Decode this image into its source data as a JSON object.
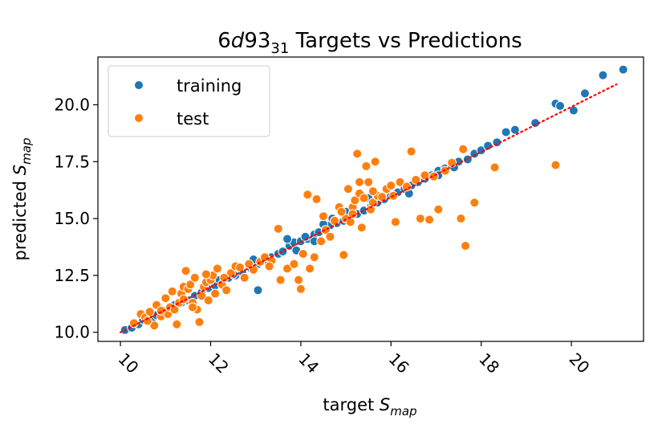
{
  "chart_data": {
    "type": "scatter",
    "title": {
      "prefix": "6",
      "italic": "d",
      "mid": "93",
      "sub": "31",
      "suffix": " Targets vs Predictions"
    },
    "xlabel": {
      "text": "target ",
      "italic": "S",
      "sub": "map"
    },
    "ylabel": {
      "text": "predicted ",
      "italic": "S",
      "sub": "map"
    },
    "xlim": [
      9.5,
      21.6
    ],
    "ylim": [
      9.6,
      22.1
    ],
    "xticks": [
      10,
      12,
      14,
      16,
      18,
      20
    ],
    "yticks": [
      10.0,
      12.5,
      15.0,
      17.5,
      20.0
    ],
    "xtick_labels": [
      "10",
      "12",
      "14",
      "16",
      "18",
      "20"
    ],
    "ytick_labels": [
      "10.0",
      "12.5",
      "15.0",
      "17.5",
      "20.0"
    ],
    "legend": {
      "position": "upper-left",
      "entries": [
        "training",
        "test"
      ]
    },
    "series": [
      {
        "name": "training",
        "color": "#1f77b4",
        "points": [
          [
            10.1,
            10.1
          ],
          [
            10.25,
            10.2
          ],
          [
            10.4,
            10.35
          ],
          [
            10.5,
            10.55
          ],
          [
            10.7,
            10.6
          ],
          [
            10.8,
            10.75
          ],
          [
            10.95,
            10.9
          ],
          [
            11.05,
            11.0
          ],
          [
            11.2,
            11.2
          ],
          [
            11.35,
            11.3
          ],
          [
            11.5,
            11.4
          ],
          [
            11.65,
            11.6
          ],
          [
            11.8,
            11.75
          ],
          [
            11.95,
            11.95
          ],
          [
            12.1,
            12.05
          ],
          [
            12.25,
            12.2
          ],
          [
            12.4,
            12.4
          ],
          [
            12.55,
            12.5
          ],
          [
            12.7,
            12.65
          ],
          [
            12.9,
            12.8
          ],
          [
            13.05,
            13.0
          ],
          [
            13.2,
            13.2
          ],
          [
            13.35,
            13.3
          ],
          [
            13.5,
            13.45
          ],
          [
            13.6,
            13.55
          ],
          [
            13.75,
            13.8
          ],
          [
            13.85,
            13.95
          ],
          [
            14.0,
            14.0
          ],
          [
            14.15,
            14.1
          ],
          [
            14.3,
            14.3
          ],
          [
            14.4,
            14.4
          ],
          [
            14.55,
            14.6
          ],
          [
            14.65,
            14.7
          ],
          [
            14.8,
            14.8
          ],
          [
            14.95,
            14.9
          ],
          [
            15.1,
            15.1
          ],
          [
            15.25,
            15.2
          ],
          [
            15.4,
            15.35
          ],
          [
            15.55,
            15.5
          ],
          [
            15.7,
            15.7
          ],
          [
            15.85,
            15.85
          ],
          [
            16.0,
            16.0
          ],
          [
            16.15,
            16.15
          ],
          [
            16.3,
            16.3
          ],
          [
            16.45,
            16.45
          ],
          [
            16.6,
            16.6
          ],
          [
            16.75,
            16.75
          ],
          [
            16.9,
            16.9
          ],
          [
            17.05,
            17.1
          ],
          [
            17.2,
            17.2
          ],
          [
            17.35,
            17.35
          ],
          [
            17.5,
            17.5
          ],
          [
            17.7,
            17.6
          ],
          [
            17.85,
            17.85
          ],
          [
            18.0,
            18.0
          ],
          [
            18.15,
            18.2
          ],
          [
            18.35,
            18.35
          ],
          [
            18.55,
            18.8
          ],
          [
            18.75,
            18.9
          ],
          [
            19.2,
            19.2
          ],
          [
            19.65,
            20.05
          ],
          [
            19.75,
            19.95
          ],
          [
            20.05,
            19.75
          ],
          [
            20.3,
            20.5
          ],
          [
            20.7,
            21.3
          ],
          [
            21.15,
            21.55
          ],
          [
            13.9,
            13.6
          ],
          [
            14.3,
            14.0
          ],
          [
            14.1,
            14.2
          ],
          [
            13.7,
            14.1
          ],
          [
            14.5,
            14.75
          ],
          [
            14.7,
            15.0
          ],
          [
            15.0,
            15.3
          ],
          [
            15.5,
            15.9
          ],
          [
            15.9,
            16.3
          ],
          [
            16.4,
            16.1
          ],
          [
            17.05,
            16.9
          ],
          [
            17.4,
            17.25
          ],
          [
            12.95,
            13.2
          ],
          [
            13.05,
            11.85
          ],
          [
            12.5,
            12.55
          ],
          [
            12.2,
            12.3
          ]
        ]
      },
      {
        "name": "test",
        "color": "#ff7f0e",
        "points": [
          [
            10.3,
            10.4
          ],
          [
            10.45,
            10.8
          ],
          [
            10.55,
            10.65
          ],
          [
            10.65,
            10.9
          ],
          [
            10.75,
            10.3
          ],
          [
            10.8,
            11.2
          ],
          [
            10.9,
            10.7
          ],
          [
            11.0,
            11.5
          ],
          [
            11.05,
            10.8
          ],
          [
            11.1,
            11.1
          ],
          [
            11.2,
            11.0
          ],
          [
            11.25,
            10.35
          ],
          [
            11.3,
            11.3
          ],
          [
            11.35,
            11.7
          ],
          [
            11.4,
            12.0
          ],
          [
            11.45,
            12.7
          ],
          [
            11.5,
            11.9
          ],
          [
            11.55,
            12.1
          ],
          [
            11.6,
            11.3
          ],
          [
            11.65,
            12.4
          ],
          [
            11.7,
            11.0
          ],
          [
            11.75,
            10.45
          ],
          [
            11.8,
            11.6
          ],
          [
            11.85,
            12.0
          ],
          [
            11.9,
            12.2
          ],
          [
            11.95,
            11.4
          ],
          [
            12.0,
            12.3
          ],
          [
            12.05,
            12.5
          ],
          [
            12.1,
            11.7
          ],
          [
            12.15,
            12.8
          ],
          [
            12.25,
            12.1
          ],
          [
            12.35,
            11.85
          ],
          [
            12.45,
            12.6
          ],
          [
            12.55,
            12.9
          ],
          [
            12.65,
            12.85
          ],
          [
            12.75,
            12.4
          ],
          [
            12.85,
            13.0
          ],
          [
            12.95,
            12.75
          ],
          [
            13.1,
            13.1
          ],
          [
            13.2,
            13.3
          ],
          [
            13.35,
            13.15
          ],
          [
            13.5,
            14.55
          ],
          [
            13.55,
            12.3
          ],
          [
            13.7,
            12.8
          ],
          [
            13.85,
            13.0
          ],
          [
            13.95,
            12.3
          ],
          [
            14.0,
            11.9
          ],
          [
            14.05,
            13.45
          ],
          [
            14.15,
            16.05
          ],
          [
            14.2,
            12.8
          ],
          [
            14.3,
            13.3
          ],
          [
            14.35,
            15.85
          ],
          [
            14.45,
            14.0
          ],
          [
            14.55,
            14.5
          ],
          [
            14.65,
            14.2
          ],
          [
            14.75,
            14.9
          ],
          [
            14.85,
            15.5
          ],
          [
            14.95,
            13.4
          ],
          [
            15.0,
            15.0
          ],
          [
            15.05,
            16.3
          ],
          [
            15.1,
            14.85
          ],
          [
            15.15,
            15.5
          ],
          [
            15.2,
            15.8
          ],
          [
            15.25,
            17.85
          ],
          [
            15.3,
            16.1
          ],
          [
            15.35,
            14.6
          ],
          [
            15.4,
            15.9
          ],
          [
            15.45,
            17.3
          ],
          [
            15.5,
            16.6
          ],
          [
            15.55,
            15.4
          ],
          [
            15.6,
            15.7
          ],
          [
            15.65,
            17.5
          ],
          [
            15.7,
            16.0
          ],
          [
            15.8,
            15.95
          ],
          [
            15.9,
            16.3
          ],
          [
            16.0,
            16.45
          ],
          [
            16.05,
            16.0
          ],
          [
            16.1,
            14.85
          ],
          [
            16.2,
            16.6
          ],
          [
            16.35,
            16.4
          ],
          [
            16.45,
            17.95
          ],
          [
            16.55,
            16.7
          ],
          [
            16.65,
            15.0
          ],
          [
            16.75,
            16.9
          ],
          [
            16.85,
            14.95
          ],
          [
            16.95,
            16.85
          ],
          [
            17.05,
            15.4
          ],
          [
            17.2,
            17.1
          ],
          [
            17.35,
            17.45
          ],
          [
            17.55,
            15.0
          ],
          [
            17.6,
            18.05
          ],
          [
            17.65,
            13.8
          ],
          [
            17.85,
            15.7
          ],
          [
            18.3,
            17.25
          ],
          [
            19.65,
            17.35
          ],
          [
            15.3,
            16.6
          ],
          [
            15.15,
            15.2
          ],
          [
            14.9,
            15.3
          ],
          [
            15.6,
            16.2
          ],
          [
            14.5,
            15.1
          ],
          [
            13.3,
            12.9
          ],
          [
            11.6,
            11.1
          ],
          [
            11.9,
            12.55
          ],
          [
            12.3,
            12.4
          ],
          [
            10.9,
            10.95
          ],
          [
            11.4,
            11.45
          ],
          [
            11.15,
            11.8
          ],
          [
            10.6,
            10.5
          ]
        ]
      }
    ],
    "fit_line": {
      "color": "#ff0000",
      "style": "dotted",
      "from": [
        10.0,
        10.0
      ],
      "to": [
        21.0,
        20.9
      ]
    }
  }
}
